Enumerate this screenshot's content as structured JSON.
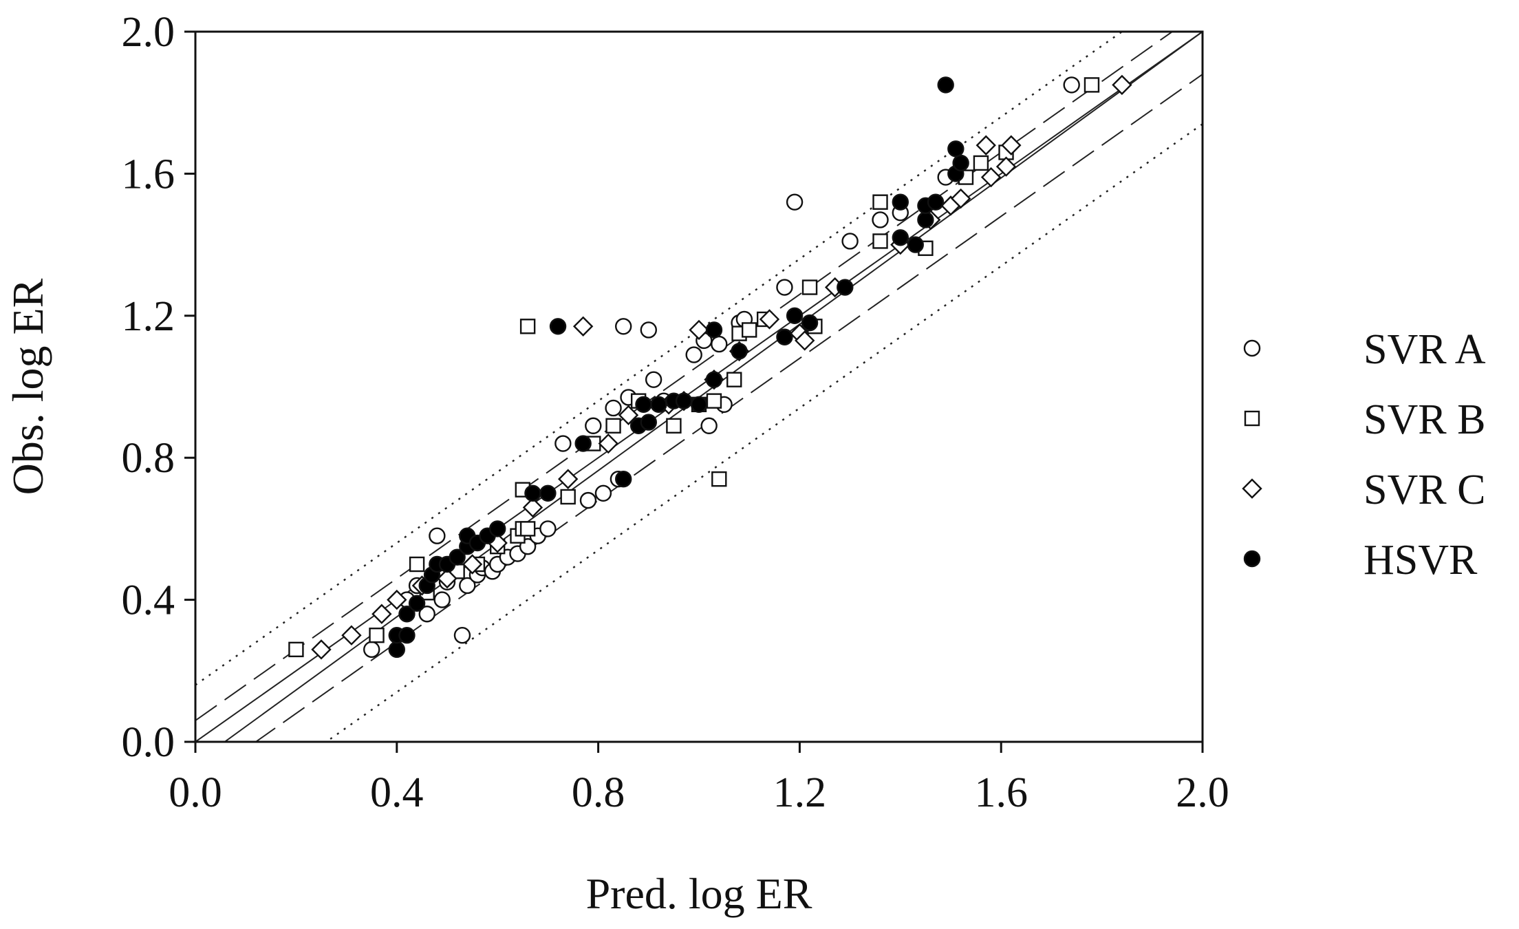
{
  "chart_data": {
    "type": "scatter",
    "xlabel": "Pred. log ER",
    "ylabel": "Obs. log ER",
    "xlim": [
      0.0,
      2.0
    ],
    "ylim": [
      0.0,
      2.0
    ],
    "xticks": [
      "0.0",
      "0.4",
      "0.8",
      "1.2",
      "1.6",
      "2.0"
    ],
    "yticks": [
      "0.0",
      "0.4",
      "0.8",
      "1.2",
      "1.6",
      "2.0"
    ],
    "grid": false,
    "legend": "right",
    "reference_lines": [
      {
        "style": "solid",
        "intercept": 0.0,
        "slope": 1.0
      },
      {
        "style": "solid",
        "intercept": -0.06,
        "slope": 1.03
      },
      {
        "style": "dashed",
        "intercept": 0.06,
        "slope": 1.0
      },
      {
        "style": "dashed",
        "intercept": -0.12,
        "slope": 1.0
      },
      {
        "style": "dotted",
        "intercept": 0.16,
        "slope": 1.0
      },
      {
        "style": "dotted",
        "intercept": -0.26,
        "slope": 1.0
      }
    ],
    "series": [
      {
        "name": "SVR A",
        "marker": "open-circle",
        "points": [
          [
            0.35,
            0.26
          ],
          [
            0.42,
            0.4
          ],
          [
            0.44,
            0.44
          ],
          [
            0.46,
            0.36
          ],
          [
            0.48,
            0.58
          ],
          [
            0.49,
            0.4
          ],
          [
            0.5,
            0.45
          ],
          [
            0.53,
            0.3
          ],
          [
            0.54,
            0.44
          ],
          [
            0.56,
            0.47
          ],
          [
            0.57,
            0.49
          ],
          [
            0.59,
            0.48
          ],
          [
            0.6,
            0.5
          ],
          [
            0.62,
            0.52
          ],
          [
            0.64,
            0.53
          ],
          [
            0.66,
            0.55
          ],
          [
            0.68,
            0.58
          ],
          [
            0.7,
            0.6
          ],
          [
            0.73,
            0.84
          ],
          [
            0.78,
            0.68
          ],
          [
            0.79,
            0.89
          ],
          [
            0.81,
            0.7
          ],
          [
            0.83,
            0.94
          ],
          [
            0.84,
            0.74
          ],
          [
            0.85,
            1.17
          ],
          [
            0.86,
            0.97
          ],
          [
            0.9,
            1.16
          ],
          [
            0.91,
            1.02
          ],
          [
            0.93,
            0.96
          ],
          [
            0.99,
            1.09
          ],
          [
            1.01,
            1.13
          ],
          [
            1.02,
            0.89
          ],
          [
            1.04,
            1.12
          ],
          [
            1.05,
            0.95
          ],
          [
            1.08,
            1.18
          ],
          [
            1.09,
            1.19
          ],
          [
            1.17,
            1.28
          ],
          [
            1.19,
            1.52
          ],
          [
            1.3,
            1.41
          ],
          [
            1.36,
            1.47
          ],
          [
            1.4,
            1.49
          ],
          [
            1.49,
            1.59
          ],
          [
            1.74,
            1.85
          ]
        ]
      },
      {
        "name": "SVR B",
        "marker": "open-square",
        "points": [
          [
            0.2,
            0.26
          ],
          [
            0.36,
            0.3
          ],
          [
            0.44,
            0.5
          ],
          [
            0.46,
            0.42
          ],
          [
            0.52,
            0.48
          ],
          [
            0.56,
            0.5
          ],
          [
            0.6,
            0.55
          ],
          [
            0.64,
            0.58
          ],
          [
            0.65,
            0.6
          ],
          [
            0.66,
            0.6
          ],
          [
            0.65,
            0.71
          ],
          [
            0.66,
            1.17
          ],
          [
            0.74,
            0.69
          ],
          [
            0.79,
            0.84
          ],
          [
            0.83,
            0.89
          ],
          [
            0.88,
            0.96
          ],
          [
            0.95,
            0.89
          ],
          [
            1.0,
            0.95
          ],
          [
            1.03,
            0.96
          ],
          [
            1.04,
            0.74
          ],
          [
            1.07,
            1.02
          ],
          [
            1.08,
            1.15
          ],
          [
            1.1,
            1.16
          ],
          [
            1.13,
            1.19
          ],
          [
            1.22,
            1.28
          ],
          [
            1.23,
            1.17
          ],
          [
            1.36,
            1.41
          ],
          [
            1.36,
            1.52
          ],
          [
            1.45,
            1.39
          ],
          [
            1.53,
            1.59
          ],
          [
            1.56,
            1.63
          ],
          [
            1.61,
            1.66
          ],
          [
            1.78,
            1.85
          ]
        ]
      },
      {
        "name": "SVR C",
        "marker": "open-diamond",
        "points": [
          [
            0.25,
            0.26
          ],
          [
            0.31,
            0.3
          ],
          [
            0.37,
            0.36
          ],
          [
            0.4,
            0.4
          ],
          [
            0.45,
            0.44
          ],
          [
            0.5,
            0.46
          ],
          [
            0.55,
            0.5
          ],
          [
            0.6,
            0.56
          ],
          [
            0.67,
            0.66
          ],
          [
            0.74,
            0.74
          ],
          [
            0.77,
            1.17
          ],
          [
            0.82,
            0.84
          ],
          [
            0.86,
            0.92
          ],
          [
            0.94,
            0.95
          ],
          [
            0.97,
            0.96
          ],
          [
            1.0,
            1.16
          ],
          [
            1.03,
            1.02
          ],
          [
            1.08,
            1.1
          ],
          [
            1.14,
            1.19
          ],
          [
            1.2,
            1.15
          ],
          [
            1.21,
            1.13
          ],
          [
            1.27,
            1.28
          ],
          [
            1.4,
            1.4
          ],
          [
            1.46,
            1.47
          ],
          [
            1.5,
            1.51
          ],
          [
            1.52,
            1.53
          ],
          [
            1.57,
            1.68
          ],
          [
            1.58,
            1.59
          ],
          [
            1.61,
            1.62
          ],
          [
            1.62,
            1.68
          ],
          [
            1.84,
            1.85
          ]
        ]
      },
      {
        "name": "HSVR",
        "marker": "filled-circle",
        "points": [
          [
            0.4,
            0.26
          ],
          [
            0.4,
            0.3
          ],
          [
            0.42,
            0.3
          ],
          [
            0.42,
            0.36
          ],
          [
            0.44,
            0.39
          ],
          [
            0.46,
            0.44
          ],
          [
            0.47,
            0.47
          ],
          [
            0.48,
            0.5
          ],
          [
            0.5,
            0.5
          ],
          [
            0.52,
            0.52
          ],
          [
            0.54,
            0.55
          ],
          [
            0.54,
            0.58
          ],
          [
            0.56,
            0.56
          ],
          [
            0.58,
            0.58
          ],
          [
            0.6,
            0.6
          ],
          [
            0.67,
            0.7
          ],
          [
            0.7,
            0.7
          ],
          [
            0.72,
            1.17
          ],
          [
            0.77,
            0.84
          ],
          [
            0.85,
            0.74
          ],
          [
            0.88,
            0.89
          ],
          [
            0.89,
            0.95
          ],
          [
            0.9,
            0.9
          ],
          [
            0.92,
            0.95
          ],
          [
            0.95,
            0.96
          ],
          [
            0.97,
            0.96
          ],
          [
            1.0,
            0.95
          ],
          [
            1.03,
            1.02
          ],
          [
            1.03,
            1.16
          ],
          [
            1.08,
            1.1
          ],
          [
            1.17,
            1.14
          ],
          [
            1.19,
            1.2
          ],
          [
            1.22,
            1.18
          ],
          [
            1.29,
            1.28
          ],
          [
            1.4,
            1.52
          ],
          [
            1.4,
            1.42
          ],
          [
            1.43,
            1.4
          ],
          [
            1.45,
            1.47
          ],
          [
            1.45,
            1.51
          ],
          [
            1.47,
            1.52
          ],
          [
            1.49,
            1.85
          ],
          [
            1.51,
            1.6
          ],
          [
            1.51,
            1.67
          ],
          [
            1.52,
            1.63
          ]
        ]
      }
    ]
  }
}
